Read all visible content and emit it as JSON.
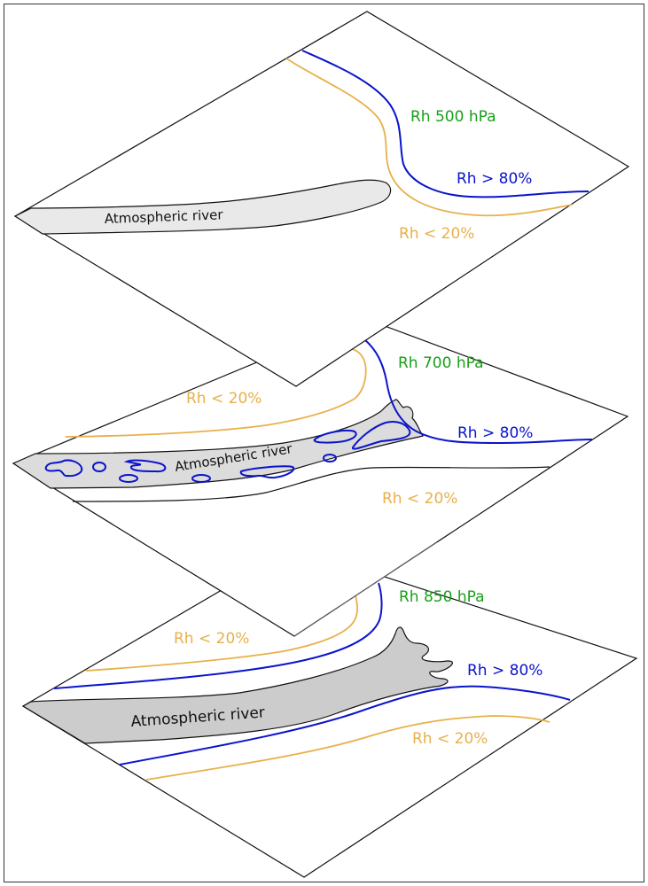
{
  "colors": {
    "level_label": "#1aa01a",
    "moist": "#0a14cc",
    "dry": "#e8b04a",
    "river_light": "#e9e9e9",
    "river_mid": "#dcdcdc",
    "river_dark": "#cccccc"
  },
  "layers": [
    {
      "level": "Rh 500 hPa",
      "moist_label": "Rh > 80%",
      "dry_labels": [
        "Rh < 20%"
      ],
      "river_label": "Atmospheric river"
    },
    {
      "level": "Rh 700 hPa",
      "moist_label": "Rh > 80%",
      "dry_labels": [
        "Rh < 20%",
        "Rh < 20%"
      ],
      "river_label": "Atmospheric river"
    },
    {
      "level": "Rh 850 hPa",
      "moist_label": "Rh > 80%",
      "dry_labels": [
        "Rh < 20%",
        "Rh < 20%"
      ],
      "river_label": "Atmospheric river"
    }
  ]
}
